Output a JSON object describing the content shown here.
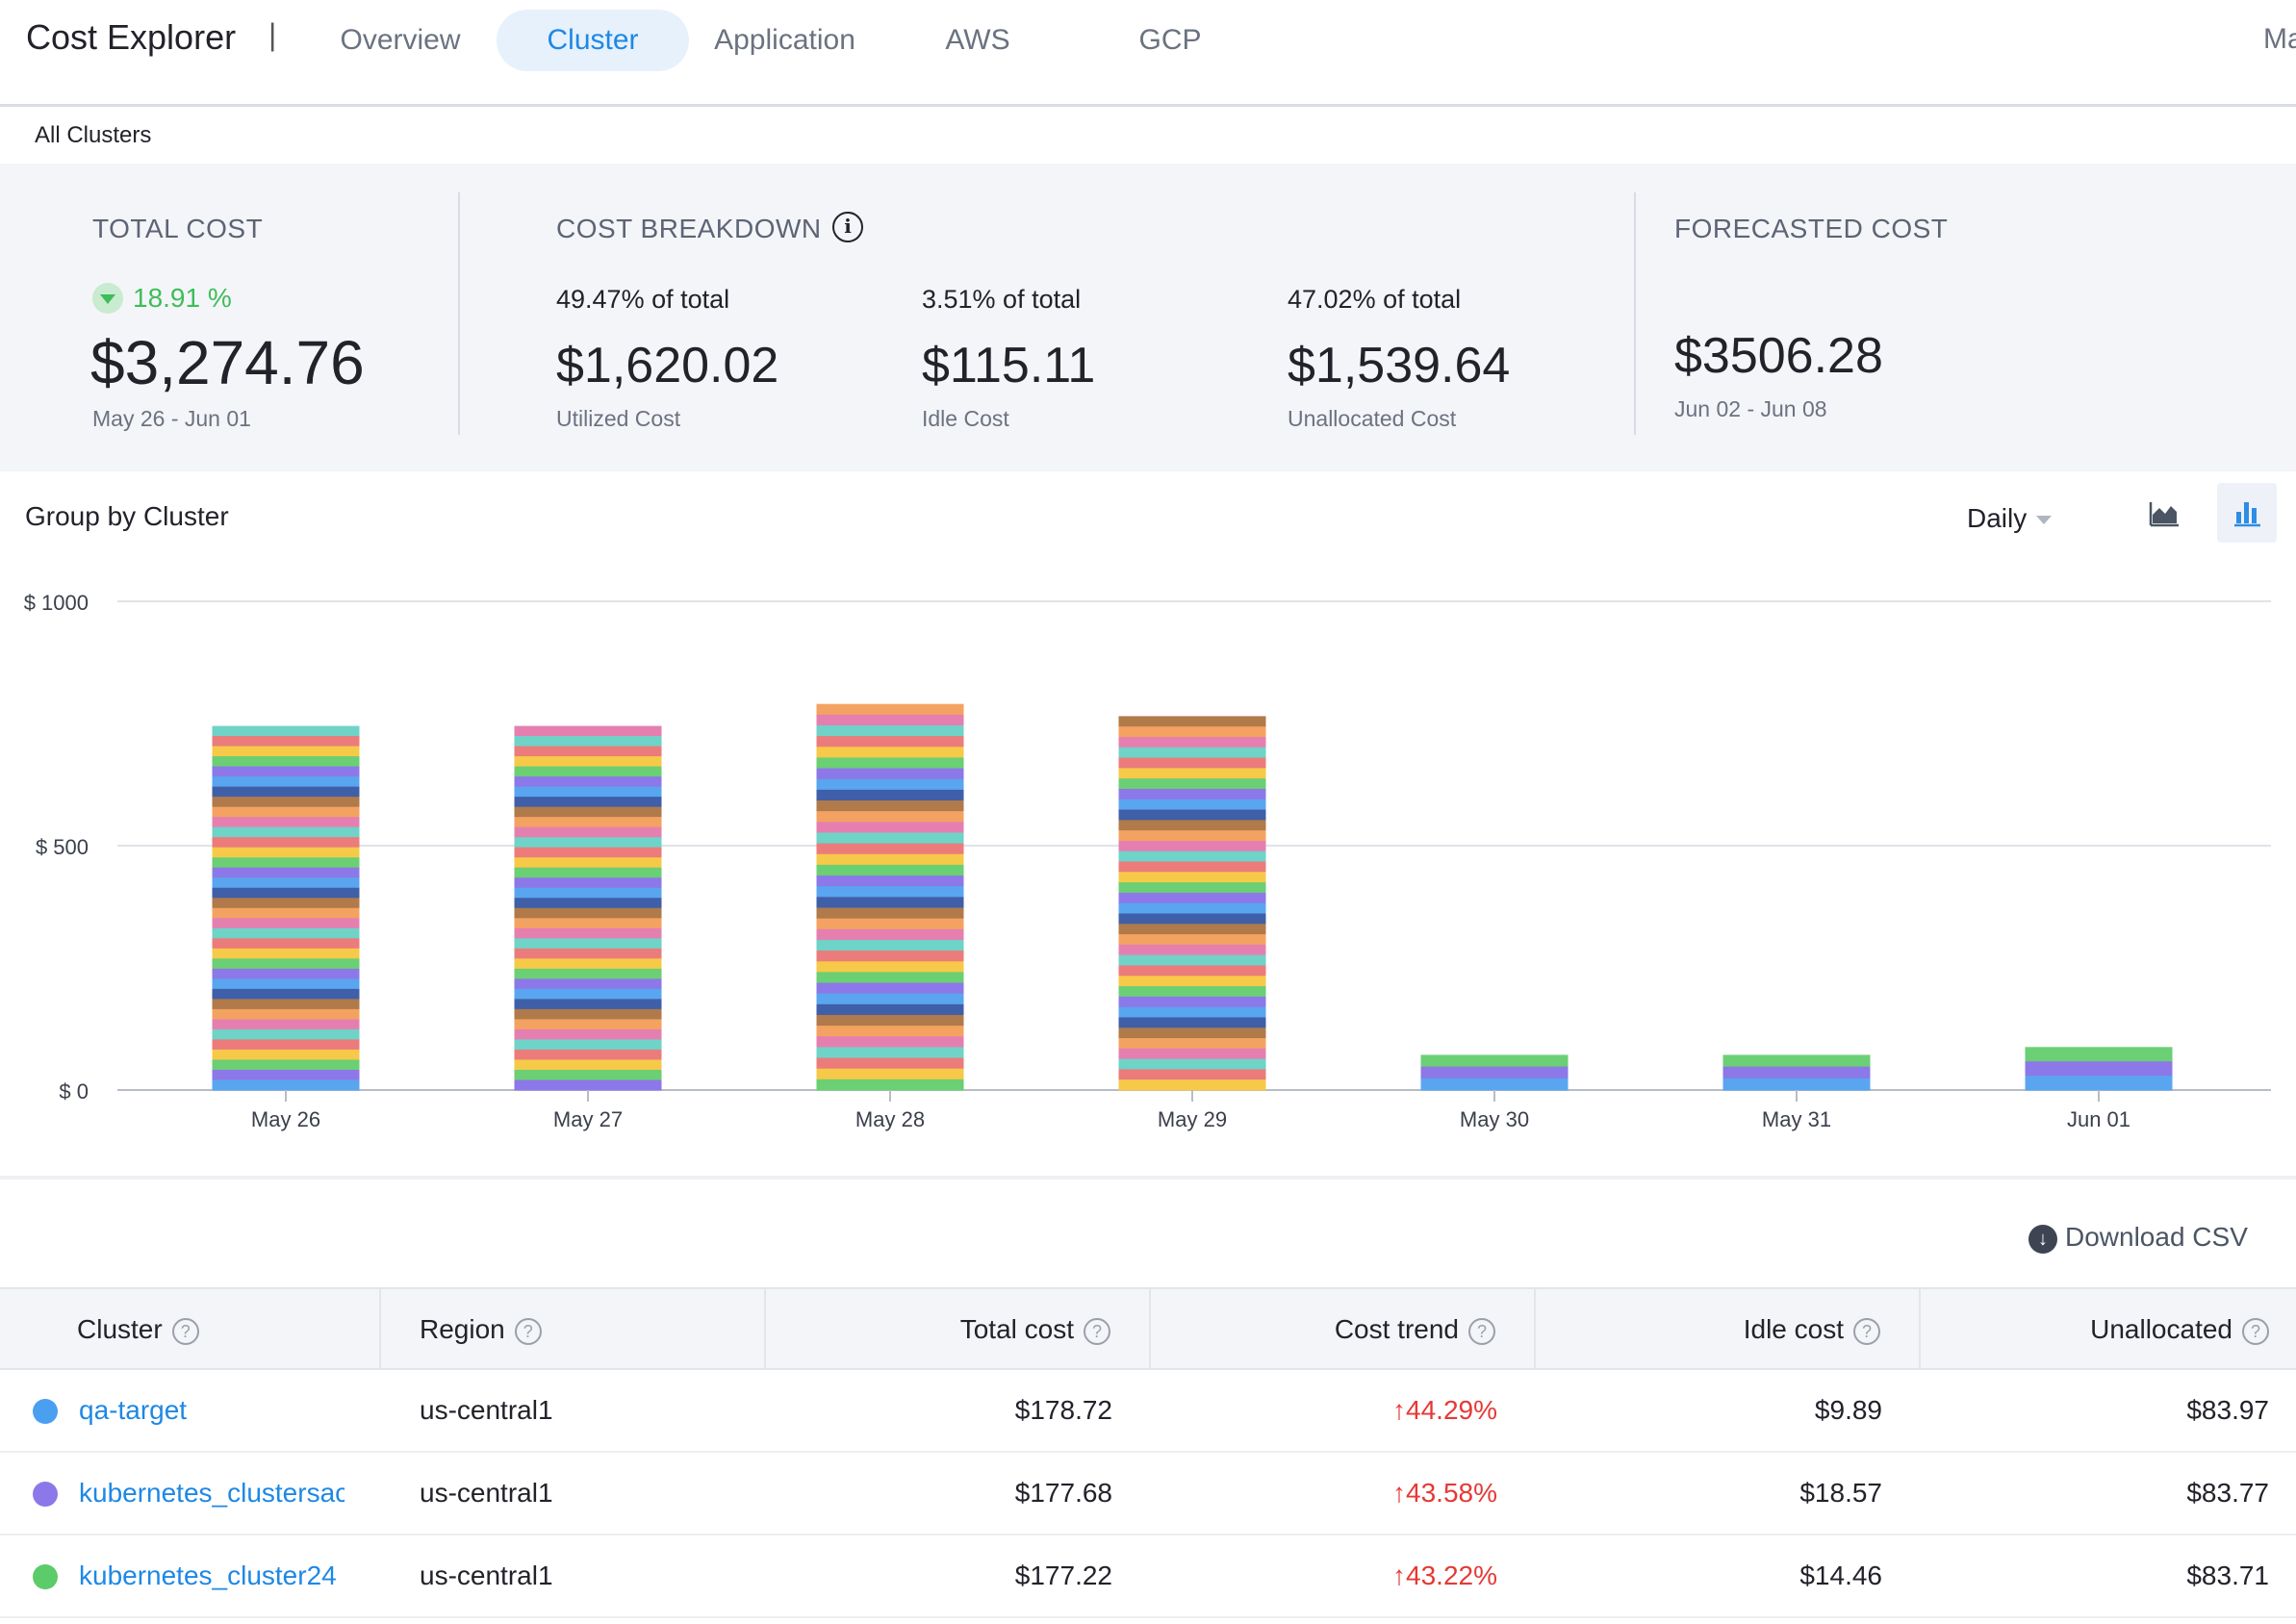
{
  "header": {
    "title": "Cost Explorer",
    "separator": "|",
    "tabs": [
      {
        "label": "Overview"
      },
      {
        "label": "Cluster"
      },
      {
        "label": "Application"
      },
      {
        "label": "AWS"
      },
      {
        "label": "GCP"
      }
    ],
    "active_tab": "Cluster",
    "right_truncated": "Ma"
  },
  "breadcrumb": "All Clusters",
  "summary": {
    "total": {
      "title": "TOTAL COST",
      "trend_pct": "18.91 %",
      "trend_dir": "down",
      "amount": "$3,274.76",
      "period": "May 26 - Jun 01"
    },
    "breakdown": {
      "title": "COST BREAKDOWN",
      "items": [
        {
          "pct": "49.47% of total",
          "amount": "$1,620.02",
          "label": "Utilized Cost"
        },
        {
          "pct": "3.51% of total",
          "amount": "$115.11",
          "label": "Idle Cost"
        },
        {
          "pct": "47.02% of total",
          "amount": "$1,539.64",
          "label": "Unallocated Cost"
        }
      ]
    },
    "forecast": {
      "title": "FORECASTED COST",
      "amount": "$3506.28",
      "period": "Jun 02 - Jun 08"
    }
  },
  "chart_controls": {
    "group_label": "Group by Cluster",
    "frequency": "Daily",
    "icons": [
      "area-chart-icon",
      "bar-chart-icon"
    ],
    "active_view": "bar"
  },
  "chart_data": {
    "type": "bar",
    "stacked": true,
    "categories": [
      "May 26",
      "May 27",
      "May 28",
      "May 29",
      "May 30",
      "May 31",
      "Jun 01"
    ],
    "totals": [
      745,
      745,
      790,
      765,
      72,
      72,
      88
    ],
    "ylim": [
      0,
      1000
    ],
    "yticks": [
      {
        "value": 0,
        "label": "$ 0"
      },
      {
        "value": 500,
        "label": "$ 500"
      },
      {
        "value": 1000,
        "label": "$ 1000"
      }
    ],
    "grid": true,
    "palette": [
      "#5aa5ef",
      "#8c78e8",
      "#6bcf74",
      "#f7c948",
      "#ec7b7b",
      "#6fd3c7",
      "#e57fb0",
      "#f4a261",
      "#b07a4a",
      "#3f5fa8"
    ]
  },
  "download": {
    "label": "Download CSV"
  },
  "table": {
    "columns": [
      "Cluster",
      "Region",
      "Total cost",
      "Cost trend",
      "Idle cost",
      "Unallocated"
    ],
    "rows": [
      {
        "color": "#4a9ff0",
        "cluster": "qa-target",
        "region": "us-central1",
        "total": "$178.72",
        "trend": "44.29%",
        "idle": "$9.89",
        "unallocated": "$83.97"
      },
      {
        "color": "#8c78e8",
        "cluster": "kubernetes_clustersac",
        "region": "us-central1",
        "total": "$177.68",
        "trend": "43.58%",
        "idle": "$18.57",
        "unallocated": "$83.77"
      },
      {
        "color": "#5ccb6a",
        "cluster": "kubernetes_cluster24",
        "region": "us-central1",
        "total": "$177.22",
        "trend": "43.22%",
        "idle": "$14.46",
        "unallocated": "$83.71"
      }
    ]
  }
}
